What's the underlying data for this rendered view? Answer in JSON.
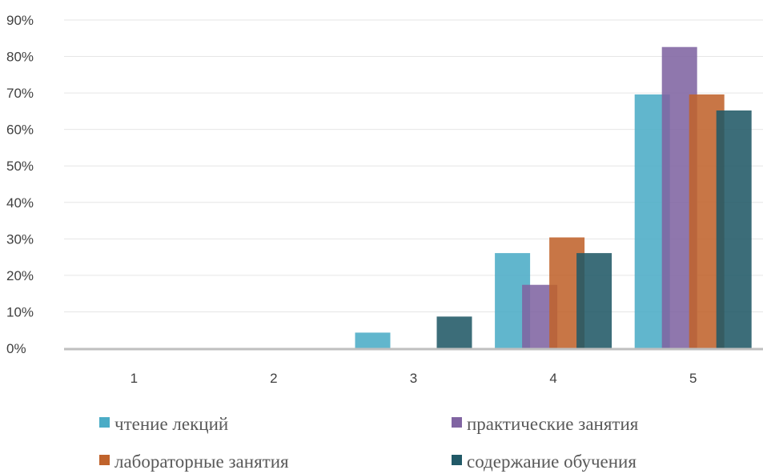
{
  "chart_data": {
    "type": "bar",
    "categories": [
      "1",
      "2",
      "3",
      "4",
      "5"
    ],
    "ylim": [
      0,
      90
    ],
    "y_ticks": [
      "0%",
      "10%",
      "20%",
      "30%",
      "40%",
      "50%",
      "60%",
      "70%",
      "80%",
      "90%"
    ],
    "y_unit": "%",
    "grid": true,
    "legend_position": "bottom",
    "series": [
      {
        "name": "чтение лекций",
        "color": "#4bacc6",
        "values": [
          0,
          0,
          4.3,
          26.1,
          69.6
        ]
      },
      {
        "name": "практические занятия",
        "color": "#8064a2",
        "values": [
          0,
          0,
          0,
          17.4,
          82.6
        ]
      },
      {
        "name": "лабораторные занятия",
        "color": "#c0632c",
        "values": [
          0,
          0,
          0,
          30.4,
          69.6
        ]
      },
      {
        "name": "содержание обучения",
        "color": "#215967",
        "values": [
          0,
          0,
          8.7,
          26.1,
          65.2
        ]
      }
    ]
  }
}
